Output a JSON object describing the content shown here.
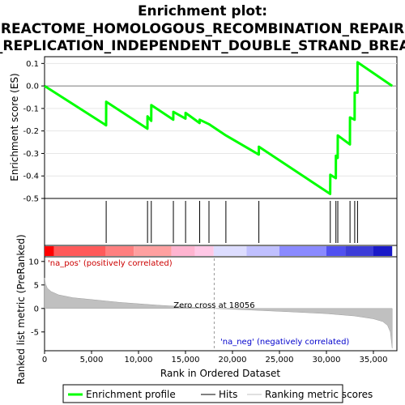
{
  "chart_data": {
    "type": "line",
    "title": "Enrichment plot:",
    "title_lines": [
      "REACTOME_HOMOLOGOUS_RECOMBINATION_REPAIR",
      "OF_REPLICATION_INDEPENDENT_DOUBLE_STRAND_BREAKS"
    ],
    "es_panel": {
      "ylabel": "Enrichment score (ES)",
      "ylim": [
        -0.5,
        0.13
      ],
      "yticks": [
        -0.5,
        -0.4,
        -0.3,
        -0.2,
        -0.1,
        0.0,
        0.1
      ],
      "ytick_labels": [
        "-0.5",
        "-0.4",
        "-0.3",
        "-0.2",
        "-0.1",
        "0.0",
        "0.1"
      ],
      "series": [
        {
          "name": "Enrichment profile",
          "color": "#00ff00",
          "x": [
            0,
            6550,
            6560,
            10950,
            10960,
            11350,
            11360,
            13700,
            13710,
            15000,
            15010,
            16500,
            16510,
            17500,
            19300,
            22800,
            22810,
            30400,
            30410,
            31000,
            31010,
            31200,
            31210,
            32500,
            32510,
            33000,
            33010,
            33300,
            33310,
            37000
          ],
          "y": [
            0.0,
            -0.175,
            -0.07,
            -0.19,
            -0.135,
            -0.155,
            -0.085,
            -0.15,
            -0.115,
            -0.145,
            -0.12,
            -0.165,
            -0.15,
            -0.17,
            -0.22,
            -0.305,
            -0.27,
            -0.48,
            -0.395,
            -0.41,
            -0.31,
            -0.32,
            -0.22,
            -0.26,
            -0.14,
            -0.15,
            -0.03,
            -0.03,
            0.105,
            0.0
          ]
        }
      ]
    },
    "hits": {
      "name": "Hits",
      "color": "#000000",
      "positions": [
        6560,
        10960,
        11360,
        13710,
        15010,
        16510,
        17500,
        19300,
        22810,
        30410,
        31010,
        31210,
        32510,
        33010,
        33310
      ]
    },
    "rank_panel": {
      "ylabel": "Ranked list metric (PreRanked)",
      "xlabel": "Rank in Ordered Dataset",
      "xlim": [
        0,
        37500
      ],
      "xticks": [
        0,
        5000,
        10000,
        15000,
        20000,
        25000,
        30000,
        35000
      ],
      "xtick_labels": [
        "0",
        "5,000",
        "10,000",
        "15,000",
        "20,000",
        "25,000",
        "30,000",
        "35,000"
      ],
      "ylim": [
        -9,
        11
      ],
      "yticks": [
        10,
        5,
        0,
        -5
      ],
      "ytick_labels": [
        "10",
        "5",
        "0",
        "-5"
      ],
      "series": [
        {
          "name": "Ranking metric scores",
          "color": "#c0c0c0",
          "x": [
            0,
            100,
            300,
            700,
            1500,
            3000,
            5000,
            8000,
            12000,
            15000,
            18056,
            22000,
            26000,
            30000,
            33000,
            35000,
            36000,
            36500,
            36800,
            37000
          ],
          "y": [
            6.5,
            5.2,
            4.3,
            3.6,
            2.9,
            2.3,
            1.9,
            1.3,
            0.7,
            0.35,
            0.0,
            -0.35,
            -0.7,
            -1.1,
            -1.6,
            -2.2,
            -2.8,
            -3.6,
            -5.0,
            -8.5
          ]
        }
      ],
      "zero_cross_label": "Zero cross at 18056",
      "zero_cross_x": 18056,
      "pos_label": "'na_pos' (positively correlated)",
      "neg_label": "'na_neg' (negatively correlated)"
    },
    "color_bar": {
      "segments": [
        {
          "end": 1000,
          "color": "#ff0000"
        },
        {
          "end": 6500,
          "color": "#ff5a5a"
        },
        {
          "end": 9500,
          "color": "#ff7f7f"
        },
        {
          "end": 13500,
          "color": "#ffa0a0"
        },
        {
          "end": 16000,
          "color": "#ffb4d0"
        },
        {
          "end": 18000,
          "color": "#ffc8e6"
        },
        {
          "end": 21500,
          "color": "#ddddff"
        },
        {
          "end": 25000,
          "color": "#c0c0ff"
        },
        {
          "end": 30000,
          "color": "#8a8aff"
        },
        {
          "end": 32000,
          "color": "#5050f0"
        },
        {
          "end": 35000,
          "color": "#3c3cd8"
        },
        {
          "end": 37000,
          "color": "#1a1ac8"
        }
      ]
    },
    "legend": {
      "placement": "bottom",
      "items": [
        {
          "label": "Enrichment profile",
          "color": "#00ff00"
        },
        {
          "label": "Hits",
          "color": "#000000"
        },
        {
          "label": "Ranking metric scores",
          "color": "#c0c0c0"
        }
      ]
    }
  }
}
